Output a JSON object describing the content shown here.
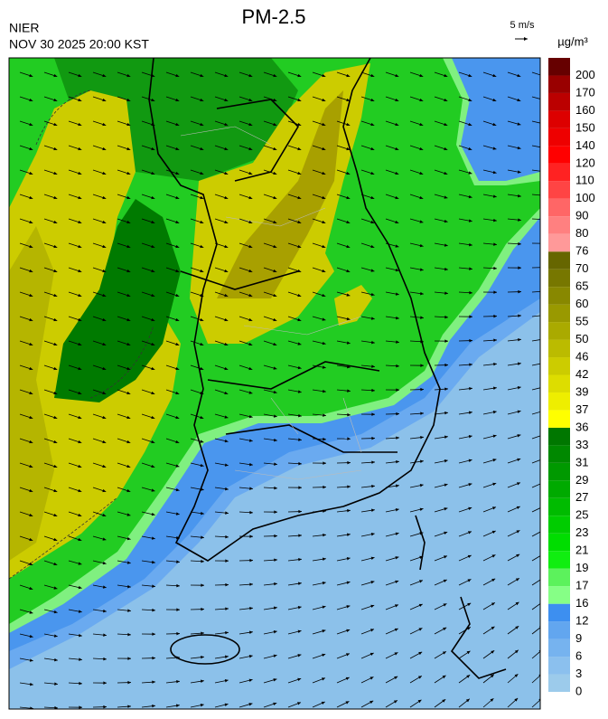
{
  "header": {
    "title": "PM-2.5",
    "source": "NIER",
    "datetime": "NOV 30 2025 20:00 KST",
    "wind_scale": "5 m/s",
    "unit": "µg/m³"
  },
  "colorbar": {
    "ticks": [
      0,
      3,
      6,
      9,
      12,
      16,
      17,
      19,
      21,
      23,
      25,
      27,
      29,
      31,
      33,
      36,
      37,
      39,
      42,
      46,
      50,
      55,
      60,
      65,
      70,
      76,
      80,
      90,
      100,
      110,
      120,
      140,
      150,
      160,
      170,
      200
    ],
    "colors": [
      "#9ccbeb",
      "#8bc0ee",
      "#76b3ef",
      "#62a6ef",
      "#3d8ff0",
      "#86ff86",
      "#5cf25c",
      "#10ee10",
      "#00dd00",
      "#00cc00",
      "#00bb00",
      "#00aa00",
      "#009900",
      "#008800",
      "#007700",
      "#ffff00",
      "#eeee00",
      "#dddd00",
      "#cccc00",
      "#bbbb00",
      "#aaaa00",
      "#999900",
      "#888800",
      "#777700",
      "#666600",
      "#ff9999",
      "#ff8080",
      "#ff6666",
      "#ff4444",
      "#ff2222",
      "#ff0000",
      "#ee0000",
      "#dd0000",
      "#bb0000",
      "#990000",
      "#660000"
    ]
  }
}
